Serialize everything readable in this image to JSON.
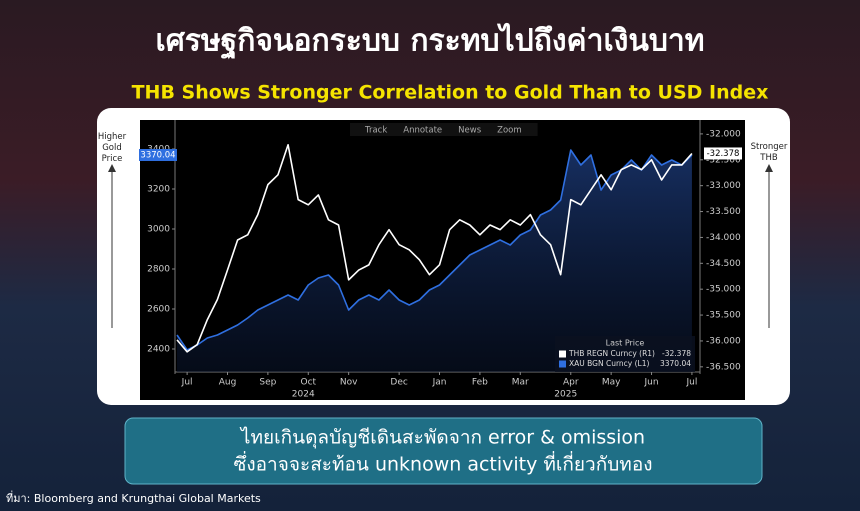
{
  "slide": {
    "title": "เศรษฐกิจนอกระบบ กระทบไปถึงค่าเงินบาท",
    "subtitle": "THB Shows Stronger Correlation to Gold Than to USD Index",
    "callout": [
      "ไทยเกินดุลบัญชีเดินสะพัดจาก error & omission",
      "ซึ่งอาจจะสะท้อน unknown activity ที่เกี่ยวกับทอง"
    ],
    "source": "ที่มา: Bloomberg  and Krungthai Global Markets"
  },
  "chart_data": {
    "type": "line",
    "toolbar": [
      "Track",
      "Annotate",
      "News",
      "Zoom"
    ],
    "ylabel": "Higher Gold Price",
    "y2label": "Stronger THB",
    "legend_title": "Last Price",
    "legend": "bottom-right",
    "categories": [
      null,
      "Jul",
      null,
      null,
      null,
      "Aug",
      null,
      null,
      null,
      "Sep",
      null,
      null,
      null,
      "Oct",
      null,
      null,
      null,
      "Nov",
      null,
      null,
      null,
      null,
      "Dec",
      null,
      null,
      null,
      "Jan",
      null,
      null,
      null,
      "Feb",
      null,
      null,
      null,
      "Mar",
      null,
      null,
      null,
      null,
      "Apr",
      null,
      null,
      null,
      "May",
      null,
      null,
      null,
      "Jun",
      null,
      null,
      null,
      "Jul"
    ],
    "years": [
      "2024",
      "2025"
    ],
    "ylim": [
      2285,
      3535
    ],
    "yticks": [
      2400,
      2600,
      2800,
      3000,
      3200,
      3400
    ],
    "y2lim": [
      -36.6,
      -31.77
    ],
    "y2ticks": [
      {
        "value": -32,
        "label": "-32.000"
      },
      {
        "value": -32.5,
        "label": "-32.500"
      },
      {
        "value": -33,
        "label": "-33.000"
      },
      {
        "value": -33.5,
        "label": "-33.500"
      },
      {
        "value": -34,
        "label": "-34.000"
      },
      {
        "value": -34.5,
        "label": "-34.500"
      },
      {
        "value": -35,
        "label": "-35.000"
      },
      {
        "value": -35.5,
        "label": "-35.500"
      },
      {
        "value": -36,
        "label": "-36.000"
      },
      {
        "value": -36.5,
        "label": "-36.500"
      }
    ],
    "series": [
      {
        "name": "THB REGN Curncy (R1)",
        "color": "#ffffff",
        "axis": "y2",
        "values": [
          -35.98,
          -36.21,
          -36.07,
          -35.59,
          -35.2,
          -34.63,
          -34.05,
          -33.95,
          -33.56,
          -32.98,
          -32.79,
          -32.21,
          -33.27,
          -33.37,
          -33.18,
          -33.66,
          -33.76,
          -34.82,
          -34.63,
          -34.53,
          -34.14,
          -33.85,
          -34.14,
          -34.24,
          -34.43,
          -34.72,
          -34.53,
          -33.85,
          -33.66,
          -33.76,
          -33.95,
          -33.76,
          -33.85,
          -33.66,
          -33.76,
          -33.56,
          -33.95,
          -34.14,
          -34.72,
          -33.27,
          -33.37,
          -33.08,
          -32.79,
          -33.08,
          -32.69,
          -32.6,
          -32.69,
          -32.5,
          -32.89,
          -32.6,
          -32.6,
          -32.378
        ]
      },
      {
        "name": "XAU BGN Curncy (L1)",
        "color": "#2f6fe0",
        "axis": "y",
        "values": [
          2470,
          2395,
          2420,
          2455,
          2470,
          2495,
          2520,
          2555,
          2595,
          2620,
          2645,
          2670,
          2645,
          2720,
          2755,
          2770,
          2720,
          2595,
          2645,
          2670,
          2645,
          2695,
          2645,
          2620,
          2645,
          2695,
          2720,
          2770,
          2820,
          2870,
          2895,
          2920,
          2945,
          2920,
          2970,
          2995,
          3070,
          3095,
          3145,
          3395,
          3320,
          3370,
          3195,
          3270,
          3295,
          3345,
          3295,
          3370,
          3320,
          3345,
          3320,
          3370.04
        ]
      }
    ]
  }
}
